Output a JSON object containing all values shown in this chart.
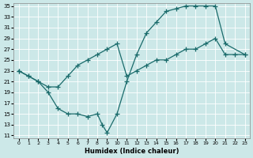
{
  "xlabel": "Humidex (Indice chaleur)",
  "ylabel": "",
  "background_color": "#cce8e8",
  "line_color": "#1a6b6b",
  "xlim": [
    0,
    23
  ],
  "ylim": [
    11,
    35
  ],
  "xticks": [
    0,
    1,
    2,
    3,
    4,
    5,
    6,
    7,
    8,
    9,
    10,
    11,
    12,
    13,
    14,
    15,
    16,
    17,
    18,
    19,
    20,
    21,
    22,
    23
  ],
  "yticks": [
    11,
    13,
    15,
    17,
    19,
    21,
    23,
    25,
    27,
    29,
    31,
    33,
    35
  ],
  "line1_x": [
    0,
    1,
    2,
    3,
    4,
    5,
    6,
    7,
    8,
    8.5,
    9,
    10,
    11,
    12,
    13,
    14,
    15,
    16,
    17,
    18,
    19,
    20,
    21,
    23
  ],
  "line1_y": [
    23,
    22,
    21,
    19,
    16,
    15,
    15,
    14.5,
    15,
    13,
    11.5,
    15,
    21,
    26,
    30,
    32,
    34,
    34.5,
    35,
    35,
    35,
    35,
    28,
    26
  ],
  "line2_x": [
    0,
    1,
    2,
    3,
    4,
    5,
    6,
    7,
    8,
    9,
    10,
    11,
    12,
    13,
    14,
    15,
    16,
    17,
    18,
    19,
    20,
    21,
    22,
    23
  ],
  "line2_y": [
    23,
    22,
    21,
    20,
    20,
    22,
    24,
    25,
    26,
    27,
    28,
    22,
    23,
    24,
    25,
    25,
    26,
    27,
    27,
    28,
    29,
    26,
    26,
    26
  ]
}
